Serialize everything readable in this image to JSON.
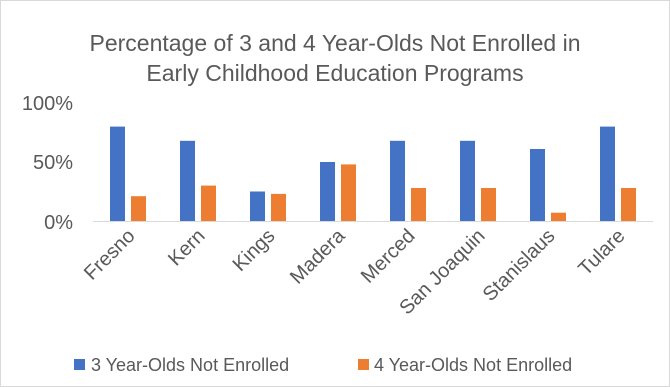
{
  "chart_data": {
    "type": "bar",
    "title_lines": [
      "Percentage of 3 and 4 Year-Olds Not Enrolled in",
      "Early Childhood Education Programs"
    ],
    "categories": [
      "Fresno",
      "Kern",
      "Kings",
      "Madera",
      "Merced",
      "San Joaquin",
      "Stanislaus",
      "Tulare"
    ],
    "series": [
      {
        "name": "3 Year-Olds Not Enrolled",
        "color": "#4472C4",
        "values": [
          80,
          68,
          25,
          50,
          68,
          68,
          61,
          80
        ]
      },
      {
        "name": "4 Year-Olds Not Enrolled",
        "color": "#ED7D31",
        "values": [
          21,
          30,
          23,
          48,
          28,
          28,
          7,
          28
        ]
      }
    ],
    "yticks": [
      "0%",
      "50%",
      "100%"
    ],
    "ylim": [
      0,
      100
    ],
    "grid": false,
    "legend_position": "bottom",
    "xlabel": "",
    "ylabel": ""
  }
}
